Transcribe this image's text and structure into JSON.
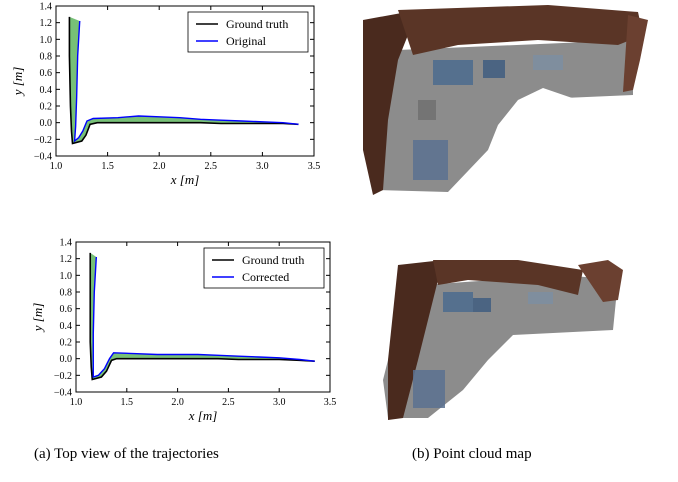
{
  "captions": {
    "a": "(a) Top view of the trajectories",
    "b": "(b) Point cloud map"
  },
  "chart_data": [
    {
      "type": "line",
      "xlabel": "x [m]",
      "ylabel": "y [m]",
      "xlim": [
        1.0,
        3.5
      ],
      "ylim": [
        -0.4,
        1.4
      ],
      "xticks": [
        "1.0",
        "1.5",
        "2.0",
        "2.5",
        "3.0",
        "3.5"
      ],
      "yticks": [
        "−0.4",
        "−0.2",
        "0.0",
        "0.2",
        "0.4",
        "0.6",
        "0.8",
        "1.0",
        "1.2",
        "1.4"
      ],
      "legend_position": "top-right",
      "error_fill_color": "#2e9e2e",
      "series": [
        {
          "name": "Ground truth",
          "color": "#000000",
          "x": [
            1.13,
            1.13,
            1.14,
            1.15,
            1.16,
            1.25,
            1.29,
            1.33,
            1.4,
            1.6,
            1.8,
            2.0,
            2.2,
            2.4,
            2.6,
            2.8,
            3.0,
            3.2,
            3.35
          ],
          "y": [
            1.27,
            0.8,
            0.2,
            -0.1,
            -0.25,
            -0.22,
            -0.15,
            -0.02,
            0.0,
            0.0,
            0.0,
            0.0,
            0.0,
            0.0,
            -0.01,
            -0.01,
            -0.01,
            -0.01,
            -0.02
          ]
        },
        {
          "name": "Original",
          "color": "#0000ff",
          "x": [
            1.23,
            1.21,
            1.2,
            1.19,
            1.18,
            1.22,
            1.26,
            1.3,
            1.36,
            1.6,
            1.8,
            2.0,
            2.2,
            2.4,
            2.6,
            2.8,
            3.0,
            3.2,
            3.35
          ],
          "y": [
            1.22,
            0.8,
            0.3,
            -0.05,
            -0.22,
            -0.18,
            -0.1,
            0.02,
            0.05,
            0.06,
            0.08,
            0.07,
            0.06,
            0.04,
            0.03,
            0.02,
            0.01,
            0.0,
            -0.02
          ]
        }
      ]
    },
    {
      "type": "line",
      "xlabel": "x [m]",
      "ylabel": "y [m]",
      "xlim": [
        1.0,
        3.5
      ],
      "ylim": [
        -0.4,
        1.4
      ],
      "xticks": [
        "1.0",
        "1.5",
        "2.0",
        "2.5",
        "3.0",
        "3.5"
      ],
      "yticks": [
        "−0.4",
        "−0.2",
        "0.0",
        "0.2",
        "0.4",
        "0.6",
        "0.8",
        "1.0",
        "1.2",
        "1.4"
      ],
      "legend_position": "top-right",
      "error_fill_color": "#2e9e2e",
      "series": [
        {
          "name": "Ground truth",
          "color": "#000000",
          "x": [
            1.14,
            1.14,
            1.14,
            1.15,
            1.16,
            1.25,
            1.3,
            1.35,
            1.4,
            1.6,
            1.8,
            2.0,
            2.2,
            2.4,
            2.6,
            2.8,
            3.0,
            3.2,
            3.35
          ],
          "y": [
            1.27,
            0.8,
            0.2,
            -0.1,
            -0.25,
            -0.22,
            -0.15,
            -0.02,
            0.0,
            0.0,
            0.0,
            0.0,
            0.0,
            0.0,
            -0.01,
            -0.01,
            -0.01,
            -0.02,
            -0.03
          ]
        },
        {
          "name": "Corrected",
          "color": "#0000ff",
          "x": [
            1.2,
            1.18,
            1.17,
            1.17,
            1.17,
            1.22,
            1.28,
            1.33,
            1.37,
            1.6,
            1.8,
            2.0,
            2.2,
            2.4,
            2.6,
            2.8,
            3.0,
            3.2,
            3.35
          ],
          "y": [
            1.22,
            0.8,
            0.3,
            -0.05,
            -0.22,
            -0.2,
            -0.12,
            0.0,
            0.07,
            0.06,
            0.05,
            0.05,
            0.05,
            0.04,
            0.03,
            0.02,
            0.01,
            -0.01,
            -0.03
          ]
        }
      ]
    }
  ]
}
